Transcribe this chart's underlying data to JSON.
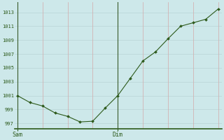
{
  "x_values": [
    0,
    1,
    2,
    3,
    4,
    5,
    6,
    7,
    8,
    9,
    10,
    11,
    12,
    13,
    14,
    15,
    16
  ],
  "y_values": [
    1001,
    1000,
    999.5,
    998.5,
    998.0,
    997.2,
    997.3,
    999.2,
    1001,
    1003.5,
    1006,
    1007.3,
    1009.2,
    1011,
    1011.5,
    1012.0,
    1013.5
  ],
  "sam_x": 0,
  "dim_x": 8,
  "xtick_positions": [
    0,
    8
  ],
  "xtick_labels": [
    "Sam",
    "Dim"
  ],
  "ytick_values": [
    997,
    999,
    1001,
    1003,
    1005,
    1007,
    1009,
    1011,
    1013
  ],
  "ylim": [
    996.2,
    1014.5
  ],
  "xlim": [
    -0.2,
    16.3
  ],
  "pink_vlines_x": [
    2,
    4,
    6,
    8,
    10,
    12,
    14,
    16
  ],
  "teal_hlines_y": [
    997,
    999,
    1001,
    1003,
    1005,
    1007,
    1009,
    1011,
    1013
  ],
  "line_color": "#2d5a1b",
  "marker_color": "#2d5a1b",
  "bg_color": "#cde8ea",
  "grid_color_h": "#b8d4d6",
  "grid_color_v": "#d4a8a8",
  "vline_color": "#3a5a2a",
  "axis_color": "#2d5a1b",
  "bottom_spine_color": "#2d5a1b"
}
